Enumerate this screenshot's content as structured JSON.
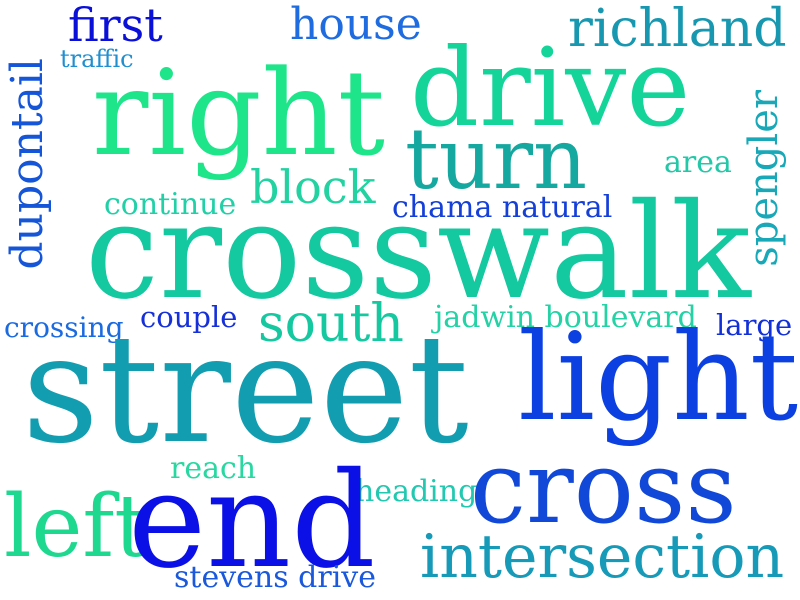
{
  "words": [
    {
      "text": "first",
      "color": "#0a10d8"
    },
    {
      "text": "traffic",
      "color": "#1f8fd0"
    },
    {
      "text": "house",
      "color": "#1f6be0"
    },
    {
      "text": "richland",
      "color": "#1898b0"
    },
    {
      "text": "dupontail",
      "color": "#1555d8"
    },
    {
      "text": "right",
      "color": "#1ee58a"
    },
    {
      "text": "drive",
      "color": "#14d49a"
    },
    {
      "text": "turn",
      "color": "#15a8a0"
    },
    {
      "text": "spengler",
      "color": "#18a8b8"
    },
    {
      "text": "area",
      "color": "#22c8a8"
    },
    {
      "text": "block",
      "color": "#22d2a0"
    },
    {
      "text": "continue",
      "color": "#22d0a8"
    },
    {
      "text": "chama natural",
      "color": "#1540d8"
    },
    {
      "text": "crosswalk",
      "color": "#14c8a0"
    },
    {
      "text": "crossing",
      "color": "#1a6ae0"
    },
    {
      "text": "couple",
      "color": "#1530d8"
    },
    {
      "text": "south",
      "color": "#16c8a0"
    },
    {
      "text": "jadwin boulevard",
      "color": "#25d2a5"
    },
    {
      "text": "large",
      "color": "#1230d8"
    },
    {
      "text": "street",
      "color": "#129eb0"
    },
    {
      "text": "light",
      "color": "#0c40e0"
    },
    {
      "text": "reach",
      "color": "#28d8a0"
    },
    {
      "text": "heading",
      "color": "#22c8b0"
    },
    {
      "text": "cross",
      "color": "#1248d8"
    },
    {
      "text": "left",
      "color": "#1fd890"
    },
    {
      "text": "end",
      "color": "#0a10e6"
    },
    {
      "text": "intersection",
      "color": "#169ab8"
    },
    {
      "text": "stevens drive",
      "color": "#1a58dc"
    }
  ]
}
